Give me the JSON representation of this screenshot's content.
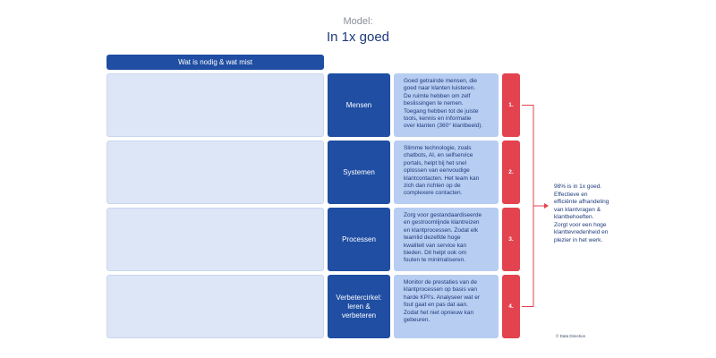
{
  "header": {
    "label": "Model:",
    "title": "In 1x goed"
  },
  "column_header": "Wat is nodig & wat mist",
  "rows": [
    {
      "category": "Mensen",
      "description": "Goed getrainde mensen, die\ngoed naar klanten luisteren.\nDe ruimte hebben om zelf\nbeslissingen te nemen.\nToegang hebben tot de juiste\ntools, kennis en informatie\nover klanten (360° klantbeeld).",
      "number": "1."
    },
    {
      "category": "Systemen",
      "description": "Slimme technologie, zoals\nchatbots, AI, en selfservice\nportals, helpt bij het snel\noplossen van eenvoudige\nklantcontacten. Het team kan\nzich dan richten op de\ncomplexere contacten.",
      "number": "2."
    },
    {
      "category": "Processen",
      "description": "Zorg voor gestandaardiseerde\nen gestroomlijnde klantreizen\nen klantprocessen. Zodat elk\nteamlid dezelfde hoge\nkwaliteit van service kan\nbieden. Dit helpt ook om\nfouten te minimaliseren.",
      "number": "3."
    },
    {
      "category": "Verbetercirkel:\nleren &\nverbeteren",
      "description": "Monitor de prestaties van de\nklantprocessen op basis van\nharde KPI's. Analyseer wat er\nfout gaat en pas dat aan.\nZodat het niet opnieuw kan\ngebeuren.",
      "number": "4."
    }
  ],
  "summary": "98% is in 1x goed.\nEffectieve en\nefficiënte afhandeling\nvan klantvragen &\nklantbehoeften.\nZorgt voor een hoge\nklanttevredenheid en\nplezier in het werk.",
  "copyright": "© Data Direction",
  "colors": {
    "navy": "#1f4ea3",
    "light_blue": "#dce6f7",
    "mid_blue": "#b7cdf1",
    "red": "#e3434f"
  }
}
